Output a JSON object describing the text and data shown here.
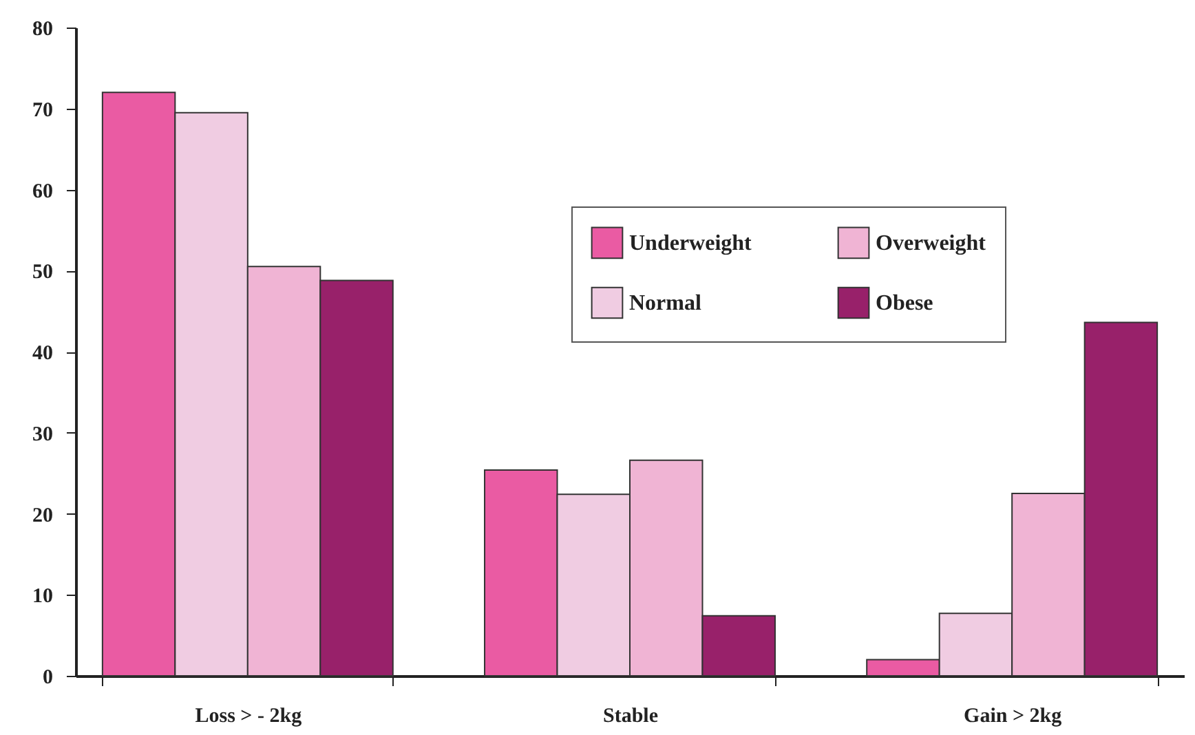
{
  "chart_data": {
    "type": "bar",
    "categories": [
      "Loss > - 2kg",
      "Stable",
      "Gain > 2kg"
    ],
    "series": [
      {
        "name": "Underweight",
        "color": "#ea5ba3",
        "values": [
          72.0,
          25.4,
          2.0
        ]
      },
      {
        "name": "Normal",
        "color": "#f0cce2",
        "values": [
          69.5,
          22.4,
          7.7
        ]
      },
      {
        "name": "Overweight",
        "color": "#f0b4d4",
        "values": [
          50.5,
          26.6,
          22.5
        ]
      },
      {
        "name": "Obese",
        "color": "#98216a",
        "values": [
          48.8,
          7.4,
          43.6
        ]
      }
    ],
    "ylim": [
      0,
      80
    ],
    "yticks": [
      0,
      10,
      20,
      30,
      40,
      50,
      60,
      70,
      80
    ],
    "grid": false,
    "legend": "top right"
  }
}
